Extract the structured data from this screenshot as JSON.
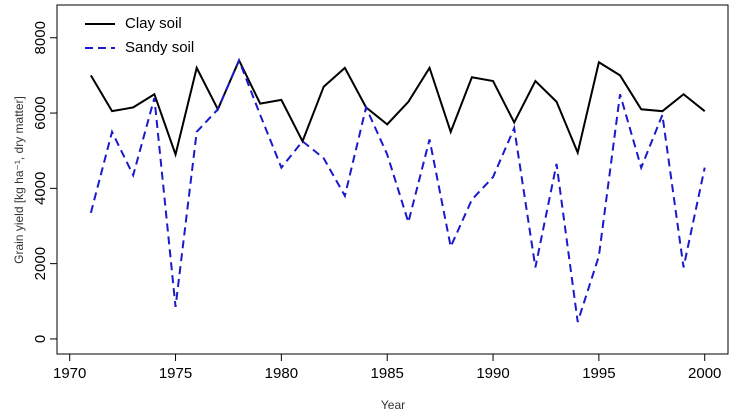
{
  "chart_data": {
    "type": "line",
    "xlabel": "Year",
    "ylabel": "Grain yield [kg  ha⁻¹, dry matter]",
    "x": [
      1971,
      1972,
      1973,
      1974,
      1975,
      1976,
      1977,
      1978,
      1979,
      1980,
      1981,
      1982,
      1983,
      1984,
      1985,
      1986,
      1987,
      1988,
      1989,
      1990,
      1991,
      1992,
      1993,
      1994,
      1995,
      1996,
      1997,
      1998,
      1999,
      2000
    ],
    "series": [
      {
        "name": "Clay soil",
        "color": "#000000",
        "dash": false,
        "values": [
          7000,
          6050,
          6150,
          6500,
          4900,
          7200,
          6100,
          7400,
          6250,
          6350,
          5250,
          6700,
          7200,
          6150,
          5700,
          6300,
          7200,
          5500,
          6950,
          6850,
          5750,
          6850,
          6300,
          4950,
          7350,
          7000,
          6100,
          6050,
          6500,
          6050
        ]
      },
      {
        "name": "Sandy soil",
        "color": "#1a1acc",
        "dash": true,
        "values": [
          3350,
          5500,
          4350,
          6400,
          850,
          5500,
          6100,
          7400,
          5950,
          4550,
          5250,
          4800,
          3800,
          6150,
          4900,
          3100,
          5300,
          2450,
          3700,
          4300,
          5600,
          1900,
          4650,
          450,
          2200,
          6500,
          4550,
          5950,
          1900,
          4550
        ]
      }
    ],
    "xlim": [
      1969.4,
      2001.1
    ],
    "xticks": [
      1970,
      1975,
      1980,
      1985,
      1990,
      1995,
      2000
    ],
    "ylim": [
      -400,
      8870
    ],
    "yticks": [
      0,
      2000,
      4000,
      6000,
      8000
    ],
    "legend": "top-left"
  }
}
